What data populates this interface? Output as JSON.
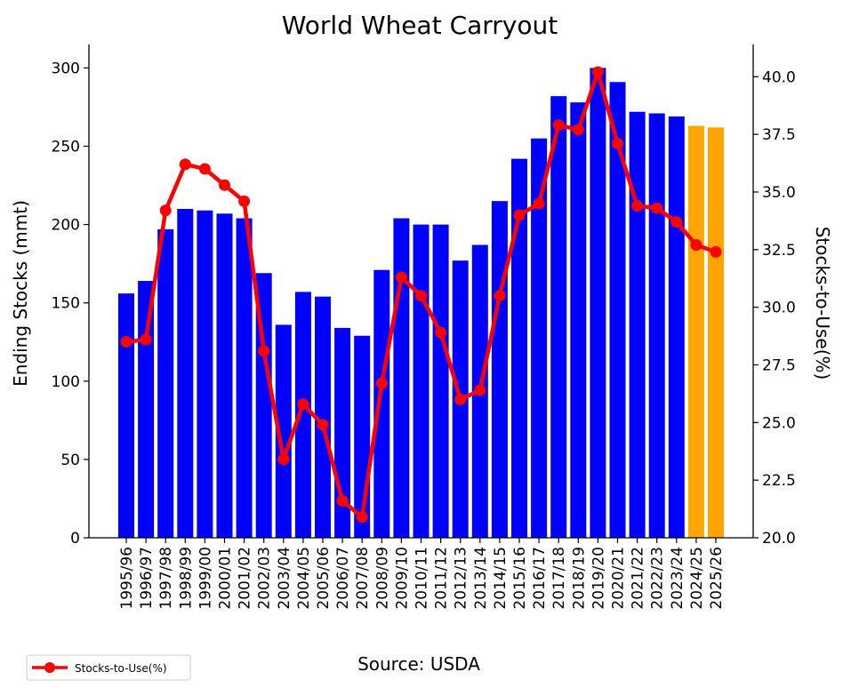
{
  "chart_data": {
    "type": "bar",
    "title": "World Wheat Carryout",
    "ylabel": "Ending Stocks (mmt)",
    "y2label": "Stocks-to-Use(%)",
    "source": "Source: USDA",
    "categories": [
      "1995/96",
      "1996/97",
      "1997/98",
      "1998/99",
      "1999/00",
      "2000/01",
      "2001/02",
      "2002/03",
      "2003/04",
      "2004/05",
      "2005/06",
      "2006/07",
      "2007/08",
      "2008/09",
      "2009/10",
      "2010/11",
      "2011/12",
      "2012/13",
      "2013/14",
      "2014/15",
      "2015/16",
      "2016/17",
      "2017/18",
      "2018/19",
      "2019/20",
      "2020/21",
      "2021/22",
      "2022/23",
      "2023/24",
      "2024/25",
      "2025/26"
    ],
    "series": [
      {
        "kind": "bar",
        "axis": "left",
        "values": [
          156,
          164,
          197,
          210,
          209,
          207,
          204,
          169,
          136,
          157,
          154,
          134,
          129,
          171,
          204,
          200,
          200,
          177,
          187,
          215,
          242,
          255,
          282,
          278,
          300,
          291,
          272,
          271,
          269,
          263,
          262
        ],
        "color": "#0000ff",
        "forecast_color": "#ffa500",
        "forecast_from_index": 29
      },
      {
        "kind": "line",
        "axis": "right",
        "name": "Stocks-to-Use(%)",
        "values": [
          28.5,
          28.6,
          34.2,
          36.2,
          36.0,
          35.3,
          34.6,
          28.1,
          23.4,
          25.8,
          24.9,
          21.6,
          20.9,
          26.7,
          31.3,
          30.5,
          28.9,
          26.0,
          26.4,
          30.5,
          34.0,
          34.5,
          37.9,
          37.7,
          40.2,
          37.1,
          34.4,
          34.3,
          33.7,
          32.7,
          32.4
        ],
        "color": "#ff0000"
      }
    ],
    "ylim": [
      0,
      315
    ],
    "y2lim": [
      20,
      41.4
    ],
    "yticks": [
      0,
      50,
      100,
      150,
      200,
      250,
      300
    ],
    "y2ticks": [
      20.0,
      22.5,
      25.0,
      27.5,
      30.0,
      32.5,
      35.0,
      37.5,
      40.0
    ],
    "legend_position": "bottom-left",
    "grid": false
  }
}
